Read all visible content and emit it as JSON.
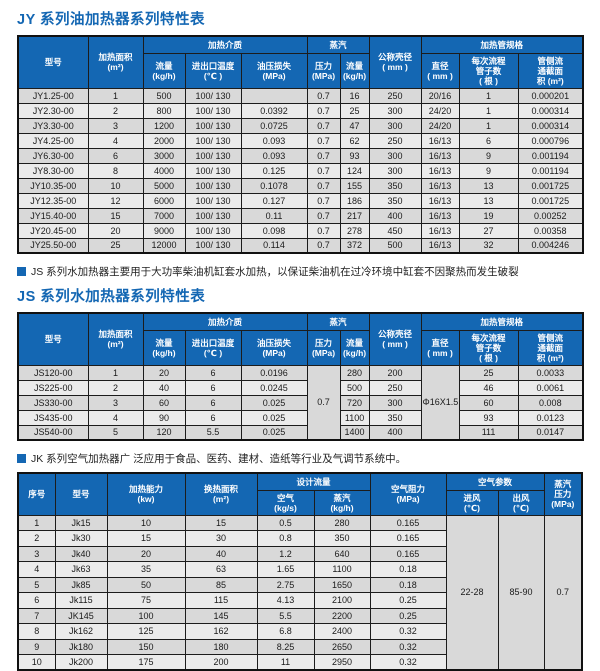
{
  "colors": {
    "accent_blue": "#1467b3",
    "header_blue": "#1467b3",
    "row_dark": "#d9d9d9",
    "row_light": "#ebebeb"
  },
  "jy_section": {
    "title": "JY 系列油加热器系列特性表"
  },
  "heater_headers": {
    "model": "型号",
    "area": "加热面积\n(m²)",
    "medium_group": "加热介质",
    "flow": "流量\n(kg/h)",
    "inout_temp": "进出口温度\n(℃ )",
    "oil_loss": "油压损失\n(MPa)",
    "steam_group": "蒸汽",
    "pressure": "压力\n(MPa)",
    "steam_flow": "流量\n(kg/h)",
    "shell_diameter": "公称壳径\n( mm )",
    "tube_group": "加热管规格",
    "diameter": "直径\n( mm )",
    "tubes_per_pass": "每次流程\n管子数\n( 根 )",
    "cross_section": "管侧流\n通截面\n积 (m²)"
  },
  "jy_table": {
    "rows": [
      [
        "JY1.25-00",
        "1",
        "500",
        "100/ 130",
        "",
        "0.7",
        "16",
        "250",
        "20/16",
        "1",
        "0.000201"
      ],
      [
        "JY2.30-00",
        "2",
        "800",
        "100/ 130",
        "0.0392",
        "0.7",
        "25",
        "300",
        "24/20",
        "1",
        "0.000314"
      ],
      [
        "JY3.30-00",
        "3",
        "1200",
        "100/ 130",
        "0.0725",
        "0.7",
        "47",
        "300",
        "24/20",
        "1",
        "0.000314"
      ],
      [
        "JY4.25-00",
        "4",
        "2000",
        "100/ 130",
        "0.093",
        "0.7",
        "62",
        "250",
        "16/13",
        "6",
        "0.000796"
      ],
      [
        "JY6.30-00",
        "6",
        "3000",
        "100/ 130",
        "0.093",
        "0.7",
        "93",
        "300",
        "16/13",
        "9",
        "0.001194"
      ],
      [
        "JY8.30-00",
        "8",
        "4000",
        "100/ 130",
        "0.125",
        "0.7",
        "124",
        "300",
        "16/13",
        "9",
        "0.001194"
      ],
      [
        "JY10.35-00",
        "10",
        "5000",
        "100/ 130",
        "0.1078",
        "0.7",
        "155",
        "350",
        "16/13",
        "13",
        "0.001725"
      ],
      [
        "JY12.35-00",
        "12",
        "6000",
        "100/ 130",
        "0.127",
        "0.7",
        "186",
        "350",
        "16/13",
        "13",
        "0.001725"
      ],
      [
        "JY15.40-00",
        "15",
        "7000",
        "100/ 130",
        "0.11",
        "0.7",
        "217",
        "400",
        "16/13",
        "19",
        "0.00252"
      ],
      [
        "JY20.45-00",
        "20",
        "9000",
        "100/ 130",
        "0.098",
        "0.7",
        "278",
        "450",
        "16/13",
        "27",
        "0.00358"
      ],
      [
        "JY25.50-00",
        "25",
        "12000",
        "100/ 130",
        "0.114",
        "0.7",
        "372",
        "500",
        "16/13",
        "32",
        "0.004246"
      ]
    ]
  },
  "js_section": {
    "note": "JS 系列水加热器主要用于大功率柴油机缸套水加热，以保证柴油机在过冷环境中缸套不因聚热而发生破裂",
    "title": "JS 系列水加热器系列特性表"
  },
  "js_table": {
    "rows": [
      [
        "JS120-00",
        "1",
        "20",
        "6",
        "0.0196",
        {
          "v": "0.7",
          "rs": 5
        },
        "280",
        "200",
        {
          "v": "Φ16X1.5",
          "rs": 5
        },
        "25",
        "0.0033"
      ],
      [
        "JS225-00",
        "2",
        "40",
        "6",
        "0.0245",
        "500",
        "250",
        "46",
        "0.0061"
      ],
      [
        "JS330-00",
        "3",
        "60",
        "6",
        "0.025",
        "720",
        "300",
        "60",
        "0.008"
      ],
      [
        "JS435-00",
        "4",
        "90",
        "6",
        "0.025",
        "1100",
        "350",
        "93",
        "0.0123"
      ],
      [
        "JS540-00",
        "5",
        "120",
        "5.5",
        "0.025",
        "1400",
        "400",
        "111",
        "0.0147"
      ]
    ]
  },
  "jk_section": {
    "note": "JK 系列空气加热器广 泛应用于食品、医药、建材、造纸等行业及气调节系统中。"
  },
  "jk_headers": {
    "no": "序号",
    "model": "型号",
    "capacity": "加热能力\n(kw)",
    "exchange_area": "换热面积\n(m²)",
    "design_flow_group": "设计流量",
    "air": "空气\n(kg/s)",
    "steam": "蒸汽\n(kg/h)",
    "air_resistance": "空气阻力\n(MPa)",
    "air_params_group": "空气参数",
    "inlet": "进风\n(℃)",
    "outlet": "出风\n(℃)",
    "steam_pressure": "蒸汽\n压力\n(MPa)"
  },
  "jk_table": {
    "rows": [
      [
        "1",
        "Jk15",
        "10",
        "15",
        "0.5",
        "280",
        "0.165",
        {
          "v": "22-28",
          "rs": 10
        },
        {
          "v": "85-90",
          "rs": 10
        },
        {
          "v": "0.7",
          "rs": 10
        }
      ],
      [
        "2",
        "Jk30",
        "15",
        "30",
        "0.8",
        "350",
        "0.165"
      ],
      [
        "3",
        "Jk40",
        "20",
        "40",
        "1.2",
        "640",
        "0.165"
      ],
      [
        "4",
        "Jk63",
        "35",
        "63",
        "1.65",
        "1100",
        "0.18"
      ],
      [
        "5",
        "Jk85",
        "50",
        "85",
        "2.75",
        "1650",
        "0.18"
      ],
      [
        "6",
        "Jk115",
        "75",
        "115",
        "4.13",
        "2100",
        "0.25"
      ],
      [
        "7",
        "JK145",
        "100",
        "145",
        "5.5",
        "2200",
        "0.25"
      ],
      [
        "8",
        "Jk162",
        "125",
        "162",
        "6.8",
        "2400",
        "0.32"
      ],
      [
        "9",
        "Jk180",
        "150",
        "180",
        "8.25",
        "2650",
        "0.32"
      ],
      [
        "10",
        "Jk200",
        "175",
        "200",
        "11",
        "2950",
        "0.32"
      ]
    ]
  }
}
